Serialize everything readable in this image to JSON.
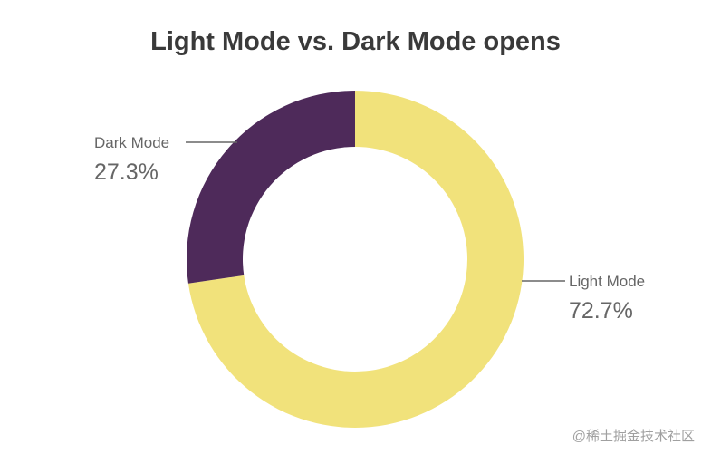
{
  "chart_data": {
    "type": "pie",
    "title": "Light Mode vs. Dark Mode opens",
    "donut": true,
    "slices": [
      {
        "label": "Light Mode",
        "value": 72.7,
        "display": "72.7%",
        "color": "#f1e27b"
      },
      {
        "label": "Dark Mode",
        "value": 27.3,
        "display": "27.3%",
        "color": "#4e2a5a"
      }
    ]
  },
  "watermark": "@稀土掘金技术社区",
  "colors": {
    "leader_line": "#666666",
    "text": "#3a3a3a"
  }
}
